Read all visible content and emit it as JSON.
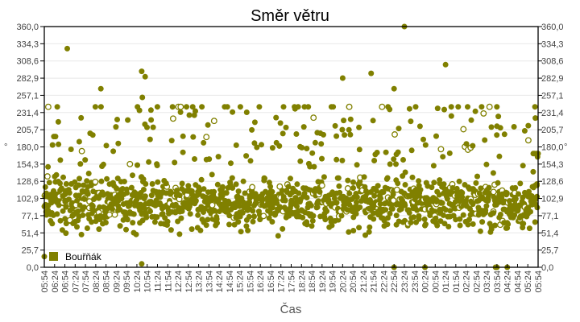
{
  "chart_data": {
    "type": "scatter",
    "title": "Směr větru",
    "xlabel": "Čas",
    "ylabel": "°",
    "ylabel_right": "°",
    "ylim": [
      0,
      360
    ],
    "y_ticks": [
      "0,0",
      "25,7",
      "51,4",
      "77,1",
      "102,9",
      "128,6",
      "154,3",
      "180,0",
      "205,7",
      "231,4",
      "257,1",
      "282,9",
      "308,6",
      "334,3",
      "360,0"
    ],
    "x_ticks": [
      "05:54",
      "06:24",
      "06:54",
      "07:24",
      "07:54",
      "08:24",
      "08:54",
      "09:24",
      "09:54",
      "10:24",
      "10:54",
      "11:24",
      "11:54",
      "12:24",
      "12:54",
      "13:24",
      "13:54",
      "14:24",
      "14:54",
      "15:24",
      "15:54",
      "16:24",
      "16:54",
      "17:24",
      "17:54",
      "18:24",
      "18:54",
      "19:24",
      "19:54",
      "20:24",
      "20:54",
      "21:24",
      "21:54",
      "22:24",
      "22:54",
      "23:24",
      "23:54",
      "00:24",
      "00:54",
      "01:24",
      "01:54",
      "02:24",
      "02:54",
      "03:24",
      "03:54",
      "04:24",
      "04:54",
      "05:24",
      "05:54"
    ],
    "grid": true,
    "legend": {
      "position": "bottom-left-inside",
      "entries": [
        {
          "name": "Bouřňák",
          "color": "#808000"
        }
      ]
    },
    "series": [
      {
        "name": "Bouřňák",
        "color": "#808000",
        "marker": "circle",
        "description": "Dense cloud of ~1400 wind direction readings, mostly 40–160°, median ~95°, with scattered outliers up to 360°",
        "distribution": {
          "count": 1400,
          "center": 95,
          "spread": 34,
          "outlier_rate": 0.12,
          "seed": 7
        },
        "notable_points": [
          {
            "x": "07:01",
            "y": 327
          },
          {
            "x": "08:39",
            "y": 267
          },
          {
            "x": "10:38",
            "y": 293
          },
          {
            "x": "10:48",
            "y": 285
          },
          {
            "x": "10:40",
            "y": 254
          },
          {
            "x": "11:05",
            "y": 235
          },
          {
            "x": "20:24",
            "y": 283
          },
          {
            "x": "21:47",
            "y": 290
          },
          {
            "x": "22:54",
            "y": 267
          },
          {
            "x": "23:24",
            "y": 360
          },
          {
            "x": "23:39",
            "y": 237
          },
          {
            "x": "01:24",
            "y": 303
          },
          {
            "x": "02:39",
            "y": 220
          },
          {
            "x": "03:54",
            "y": 211
          },
          {
            "x": "05:40",
            "y": 170
          },
          {
            "x": "05:44",
            "y": 170
          },
          {
            "x": "05:50",
            "y": 170
          },
          {
            "x": "05:54",
            "y": 170
          },
          {
            "x": "05:54",
            "y": 16
          },
          {
            "x": "10:38",
            "y": 5
          },
          {
            "x": "22:54",
            "y": 0
          },
          {
            "x": "00:24",
            "y": 0
          },
          {
            "x": "03:54",
            "y": 0
          },
          {
            "x": "04:24",
            "y": 0
          },
          {
            "x": "03:50",
            "y": 0
          }
        ]
      }
    ]
  },
  "colors": {
    "series": "#808000",
    "grid": "#e8e8e8",
    "axis": "#000000",
    "background": "#ffffff"
  }
}
